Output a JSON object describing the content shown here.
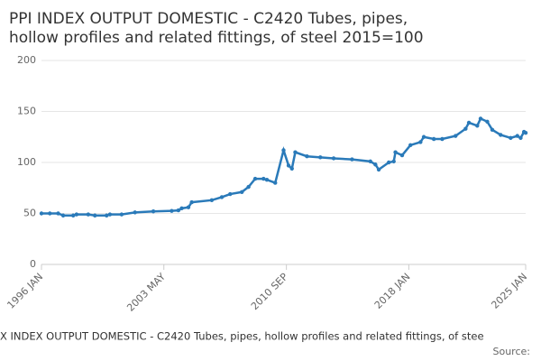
{
  "chart_data": {
    "type": "line",
    "title_lines": [
      "PPI INDEX OUTPUT DOMESTIC - C2420 Tubes, pipes,",
      "hollow profiles and related fittings, of steel 2015=100"
    ],
    "caption": "X INDEX OUTPUT DOMESTIC - C2420 Tubes, pipes, hollow profiles and related fittings, of stee",
    "source": "Source:",
    "x": [
      1996.0,
      1996.5,
      1997.0,
      1997.3,
      1997.9,
      1998.1,
      1998.8,
      1999.2,
      1999.9,
      2000.1,
      2000.8,
      2001.6,
      2002.7,
      2003.8,
      2004.2,
      2004.4,
      2004.8,
      2005.0,
      2006.2,
      2006.8,
      2007.3,
      2008.0,
      2008.4,
      2008.8,
      2009.3,
      2009.5,
      2010.0,
      2010.5,
      2010.8,
      2011.0,
      2011.2,
      2011.9,
      2012.7,
      2013.5,
      2014.6,
      2015.7,
      2016.0,
      2016.2,
      2016.8,
      2017.1,
      2017.2,
      2017.6,
      2018.1,
      2018.7,
      2018.9,
      2019.5,
      2020.0,
      2020.8,
      2021.4,
      2021.6,
      2022.1,
      2022.3,
      2022.7,
      2023.0,
      2023.5,
      2024.1,
      2024.5,
      2024.7,
      2024.9,
      2025.0
    ],
    "values": [
      50,
      50,
      50,
      48,
      48,
      49,
      49,
      48,
      48,
      49,
      49,
      51,
      52,
      52.5,
      53,
      55,
      56,
      61,
      63,
      66,
      69,
      71,
      76,
      84,
      84,
      83,
      80,
      112,
      97,
      94,
      110,
      106,
      105,
      104,
      103,
      101,
      98,
      93,
      100,
      101,
      110,
      107,
      117,
      120,
      125,
      123,
      123,
      126,
      133,
      139,
      136,
      143,
      140,
      132,
      127,
      124,
      126,
      124,
      130,
      129
    ],
    "color": "#2a7ab9",
    "xlim": [
      1996.0,
      2025.0
    ],
    "xticks": [
      {
        "value": 1996.0,
        "label": "1996 JAN"
      },
      {
        "value": 2003.33,
        "label": "2003 MAY"
      },
      {
        "value": 2010.67,
        "label": "2010 SEP"
      },
      {
        "value": 2018.0,
        "label": "2018 JAN"
      },
      {
        "value": 2025.0,
        "label": "2025 JAN"
      }
    ],
    "ylim": [
      0,
      200
    ],
    "yticks": [
      0,
      50,
      100,
      150,
      200
    ],
    "grid": true
  }
}
